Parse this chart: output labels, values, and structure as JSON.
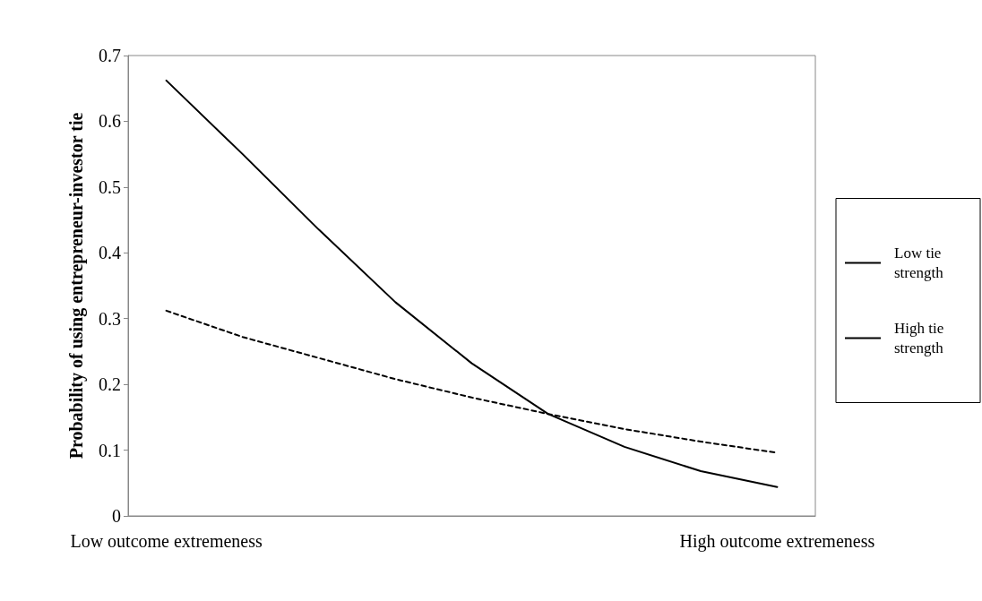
{
  "chart_data": {
    "type": "line",
    "ylabel": "Probability of using entrepreneur-investor tie",
    "categories": [
      "Low outcome extremeness",
      null,
      null,
      null,
      null,
      null,
      null,
      null,
      "High outcome extremeness"
    ],
    "series": [
      {
        "name": "Low tie strength",
        "color": "#000000",
        "line_style": "solid",
        "values": [
          0.662,
          0.55,
          0.435,
          0.325,
          0.232,
          0.155,
          0.105,
          0.068,
          0.044
        ]
      },
      {
        "name": "High tie strength",
        "color": "#000000",
        "line_style": "dashed",
        "values": [
          0.312,
          0.272,
          0.24,
          0.208,
          0.18,
          0.155,
          0.132,
          0.113,
          0.096
        ]
      }
    ],
    "ylim": [
      0,
      0.7
    ],
    "yticks": [
      0,
      0.1,
      0.2,
      0.3,
      0.4,
      0.5,
      0.6,
      0.7
    ],
    "grid": false,
    "legend": "right",
    "marker": "none"
  }
}
